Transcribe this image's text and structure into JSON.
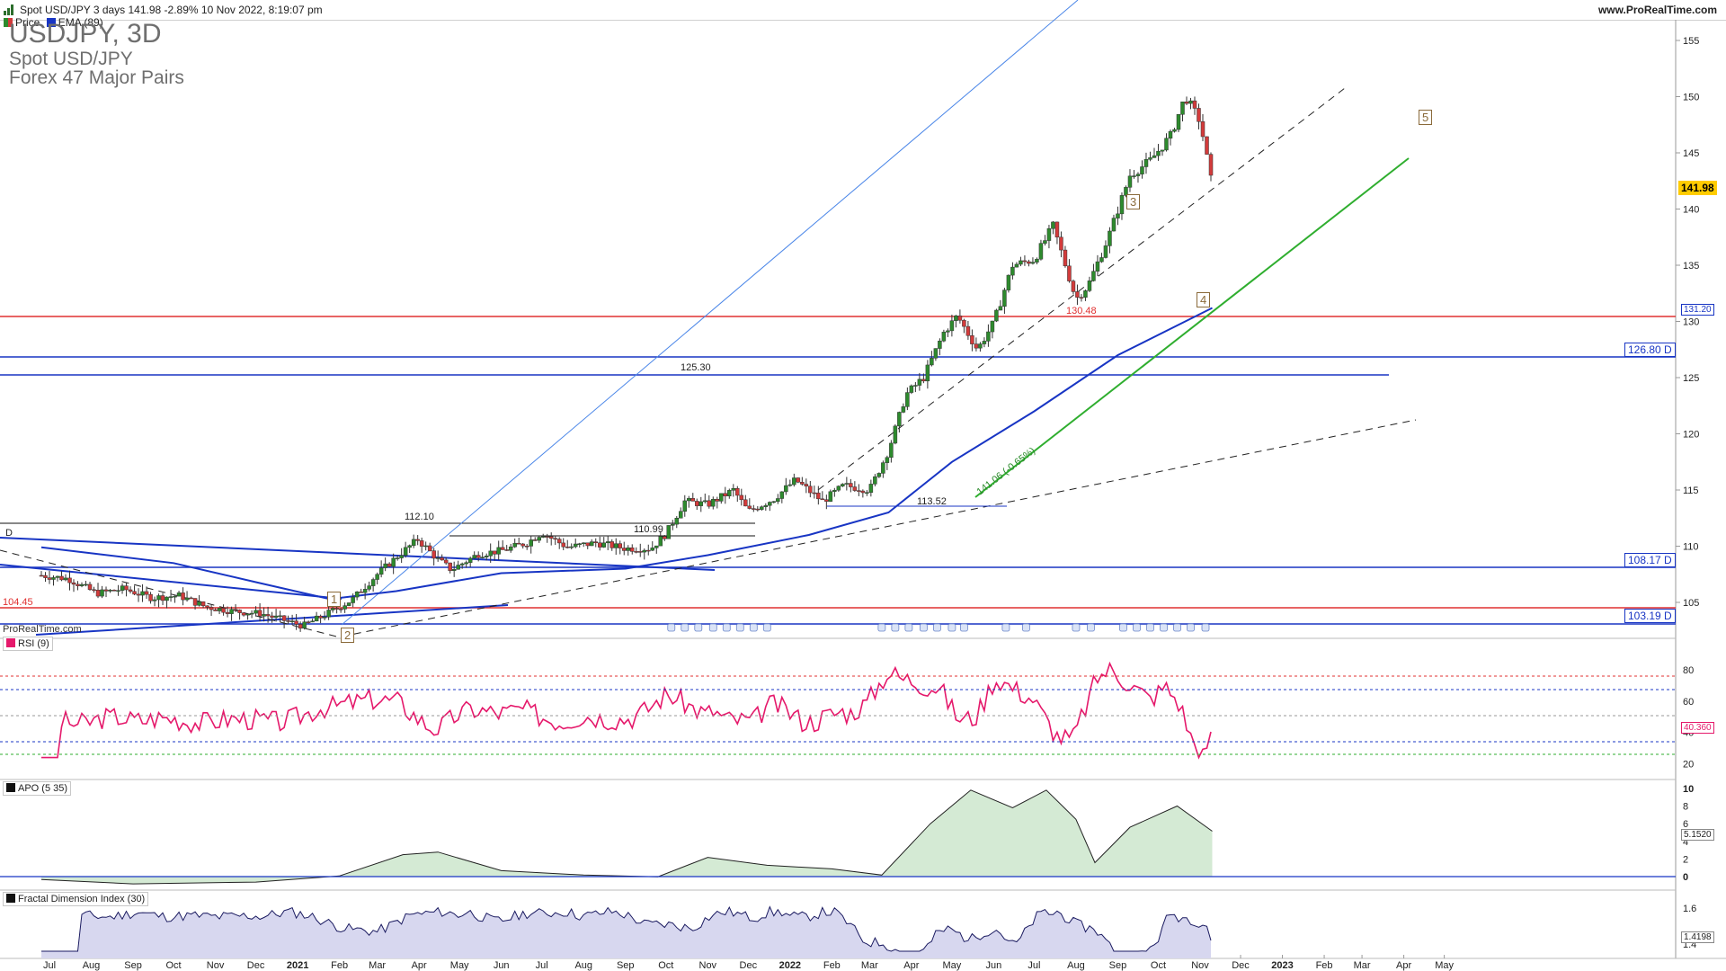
{
  "header": {
    "title": "Spot USD/JPY 3 days 141.98 -2.89% 10 Nov 2022, 8:19:07 pm",
    "site": "www.ProRealTime.com"
  },
  "legend": {
    "price_label": "Price",
    "ema_label": "EMA (89)"
  },
  "instrument": {
    "symbol": "USDJPY, 3D",
    "name": "Spot USD/JPY",
    "group": "Forex 47 Major Pairs"
  },
  "watermark": "ProRealTime.com",
  "price_panel": {
    "last_price": "141.98",
    "ema_value": "131.20",
    "level_labels": {
      "l12680": "126.80 D",
      "l10817": "108.17 D",
      "l10319": "103.19 D"
    },
    "annotations": {
      "a12530": "125.30",
      "a11210": "112.10",
      "a11099": "110.99",
      "a13048": "130.48",
      "a10445": "104.45",
      "a11352": "113.52",
      "trend": "141.06 (-0.65%)",
      "d": "D"
    },
    "waves": {
      "w1": "1",
      "w2": "2",
      "w3": "3",
      "w4": "4",
      "w5": "5"
    }
  },
  "rsi_panel": {
    "label": "RSI (9)",
    "value": "40.360"
  },
  "apo_panel": {
    "label": "APO (5 35)",
    "value": "5.1520"
  },
  "fdi_panel": {
    "label": "Fractal Dimension Index (30)",
    "value": "1.4198"
  },
  "colors": {
    "up": "#2d8a2d",
    "down": "#d23b3b",
    "ema": "#1835c4",
    "rsi": "#e5196b",
    "support": "#e03030"
  },
  "chart_data": [
    {
      "type": "candlestick",
      "title": "USDJPY, 3D",
      "x_ticks": [
        "Jul",
        "Aug",
        "Sep",
        "Oct",
        "Nov",
        "Dec",
        "2021",
        "Feb",
        "Mar",
        "Apr",
        "May",
        "Jun",
        "Jul",
        "Aug",
        "Sep",
        "Oct",
        "Nov",
        "Dec",
        "2022",
        "Feb",
        "Mar",
        "Apr",
        "May",
        "Jun",
        "Jul",
        "Aug",
        "Sep",
        "Oct",
        "Nov",
        "Dec",
        "2023",
        "Feb",
        "Mar",
        "Apr",
        "May"
      ],
      "y_ticks": [
        105,
        110,
        115,
        120,
        125,
        130,
        135,
        140,
        145,
        150,
        155
      ],
      "ylim": [
        102.5,
        157
      ],
      "series": [
        {
          "name": "Price",
          "ohlc_description": "Spot USD/JPY 3-day candles, Jun 2020 to Nov 2022",
          "close_path": [
            [
              "2020-06-25",
              107.4
            ],
            [
              "2020-07-15",
              107.1
            ],
            [
              "2020-08-05",
              105.8
            ],
            [
              "2020-08-25",
              106.2
            ],
            [
              "2020-09-15",
              105.4
            ],
            [
              "2020-10-05",
              105.6
            ],
            [
              "2020-10-25",
              104.6
            ],
            [
              "2020-11-15",
              104.2
            ],
            [
              "2020-12-05",
              104.0
            ],
            [
              "2020-12-25",
              103.3
            ],
            [
              "2021-01-05",
              102.9
            ],
            [
              "2021-01-20",
              103.8
            ],
            [
              "2021-02-10",
              105.2
            ],
            [
              "2021-03-01",
              107.5
            ],
            [
              "2021-03-15",
              109.0
            ],
            [
              "2021-03-31",
              110.6
            ],
            [
              "2021-04-15",
              108.8
            ],
            [
              "2021-04-25",
              107.9
            ],
            [
              "2021-05-15",
              109.3
            ],
            [
              "2021-06-01",
              109.6
            ],
            [
              "2021-06-20",
              110.3
            ],
            [
              "2021-07-01",
              111.2
            ],
            [
              "2021-07-20",
              109.9
            ],
            [
              "2021-08-10",
              110.3
            ],
            [
              "2021-09-01",
              109.8
            ],
            [
              "2021-09-20",
              109.8
            ],
            [
              "2021-10-01",
              111.1
            ],
            [
              "2021-10-15",
              114.0
            ],
            [
              "2021-11-01",
              113.7
            ],
            [
              "2021-11-20",
              115.0
            ],
            [
              "2021-12-01",
              113.1
            ],
            [
              "2021-12-20",
              114.2
            ],
            [
              "2022-01-05",
              115.9
            ],
            [
              "2022-01-25",
              114.0
            ],
            [
              "2022-02-10",
              115.4
            ],
            [
              "2022-03-01",
              115.0
            ],
            [
              "2022-03-15",
              118.5
            ],
            [
              "2022-03-28",
              123.5
            ],
            [
              "2022-04-10",
              125.0
            ],
            [
              "2022-04-25",
              129.0
            ],
            [
              "2022-05-05",
              130.5
            ],
            [
              "2022-05-20",
              127.5
            ],
            [
              "2022-06-01",
              129.9
            ],
            [
              "2022-06-15",
              135.0
            ],
            [
              "2022-07-01",
              135.5
            ],
            [
              "2022-07-15",
              138.5
            ],
            [
              "2022-08-01",
              132.0
            ],
            [
              "2022-08-10",
              133.2
            ],
            [
              "2022-08-25",
              137.5
            ],
            [
              "2022-09-10",
              143.0
            ],
            [
              "2022-09-25",
              144.3
            ],
            [
              "2022-10-10",
              146.5
            ],
            [
              "2022-10-21",
              150.0
            ],
            [
              "2022-11-01",
              147.8
            ],
            [
              "2022-11-10",
              141.98
            ]
          ]
        },
        {
          "name": "EMA (89)",
          "path": [
            [
              "2020-06-25",
              109.9
            ],
            [
              "2020-10-01",
              108.5
            ],
            [
              "2020-12-01",
              106.8
            ],
            [
              "2021-01-25",
              105.3
            ],
            [
              "2021-03-15",
              106.0
            ],
            [
              "2021-06-01",
              107.6
            ],
            [
              "2021-09-01",
              108.0
            ],
            [
              "2021-11-01",
              109.2
            ],
            [
              "2022-01-15",
              111.0
            ],
            [
              "2022-03-15",
              113.0
            ],
            [
              "2022-05-01",
              117.5
            ],
            [
              "2022-07-01",
              122.0
            ],
            [
              "2022-09-01",
              127.0
            ],
            [
              "2022-11-10",
              131.2
            ]
          ]
        }
      ],
      "levels": [
        130.48,
        126.8,
        125.3,
        108.17,
        104.45,
        103.19
      ]
    },
    {
      "type": "line",
      "title": "RSI (9)",
      "y_ticks": [
        20,
        40,
        60,
        80
      ],
      "ylim": [
        10,
        100
      ],
      "guides": [
        80,
        70,
        50,
        30,
        20
      ],
      "series": [
        {
          "name": "RSI (9)",
          "last": 40.36
        }
      ]
    },
    {
      "type": "area",
      "title": "APO (5 35)",
      "y_ticks": [
        0,
        2,
        4,
        6,
        8,
        10
      ],
      "ylim": [
        -1.5,
        11
      ],
      "series": [
        {
          "name": "APO (5 35)",
          "path": [
            [
              "2020-06-25",
              -0.3
            ],
            [
              "2020-09-01",
              -0.8
            ],
            [
              "2020-12-01",
              -0.6
            ],
            [
              "2021-02-01",
              0.1
            ],
            [
              "2021-03-20",
              2.5
            ],
            [
              "2021-04-15",
              2.8
            ],
            [
              "2021-06-01",
              0.7
            ],
            [
              "2021-08-01",
              0.2
            ],
            [
              "2021-09-25",
              0
            ],
            [
              "2021-11-01",
              2.2
            ],
            [
              "2021-12-15",
              1.3
            ],
            [
              "2022-02-01",
              0.9
            ],
            [
              "2022-03-10",
              0.2
            ],
            [
              "2022-04-15",
              6.0
            ],
            [
              "2022-05-15",
              9.8
            ],
            [
              "2022-06-15",
              7.8
            ],
            [
              "2022-07-10",
              9.8
            ],
            [
              "2022-08-01",
              6.5
            ],
            [
              "2022-08-15",
              1.6
            ],
            [
              "2022-09-10",
              5.6
            ],
            [
              "2022-10-15",
              8.0
            ],
            [
              "2022-11-10",
              5.152
            ]
          ]
        }
      ]
    },
    {
      "type": "area",
      "title": "Fractal Dimension Index (30)",
      "y_ticks": [
        1.4,
        1.6
      ],
      "ylim": [
        1.32,
        1.7
      ],
      "series": [
        {
          "name": "Fractal Dimension Index (30)",
          "last": 1.4198
        }
      ]
    }
  ]
}
